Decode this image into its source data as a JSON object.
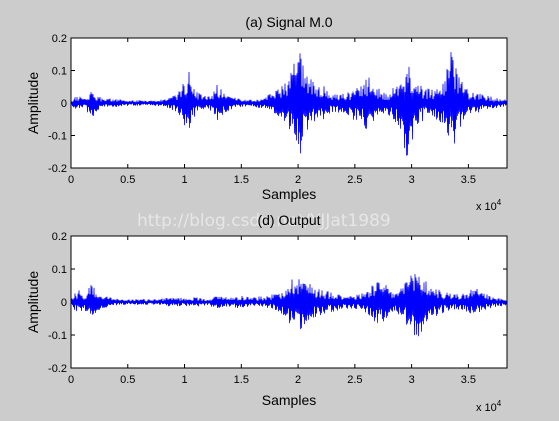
{
  "watermark": "http://blog.csdn.net/YJJat1989",
  "chart_data": [
    {
      "type": "line",
      "title": "(a)   Signal M.0",
      "xlabel": "Samples",
      "ylabel": "Amplitude",
      "x_exponent_label": "x 10",
      "x_exponent_value": "4",
      "xlim": [
        0,
        38400
      ],
      "ylim": [
        -0.2,
        0.2
      ],
      "xticks": [
        0,
        5000,
        10000,
        15000,
        20000,
        25000,
        30000,
        35000
      ],
      "xtick_labels": [
        "0",
        "0.5",
        "1",
        "1.5",
        "2",
        "2.5",
        "3",
        "3.5"
      ],
      "yticks": [
        -0.2,
        -0.1,
        0,
        0.1,
        0.2
      ],
      "ytick_labels": [
        "-0.2",
        "-0.1",
        "0",
        "0.1",
        "0.2"
      ],
      "grid": false,
      "line_color": "#0000ff",
      "series": [
        {
          "envelope_x": [
            0,
            600,
            1200,
            1800,
            2100,
            2600,
            3200,
            4000,
            5000,
            6000,
            7000,
            8000,
            8500,
            9200,
            9600,
            10000,
            10300,
            10800,
            11500,
            12000,
            12500,
            12800,
            13100,
            13600,
            14200,
            15000,
            16000,
            17000,
            17800,
            18500,
            19200,
            19800,
            20100,
            20600,
            21200,
            21800,
            22200,
            22600,
            23000,
            23600,
            24300,
            25000,
            25600,
            26200,
            26700,
            27200,
            27800,
            28300,
            28600,
            29000,
            29500,
            30000,
            30300,
            30700,
            31200,
            31800,
            32400,
            33000,
            33400,
            33800,
            34200,
            34700,
            35300,
            35800,
            36400,
            37000,
            37600,
            38400
          ],
          "envelope_upper": [
            0.012,
            0.022,
            0.015,
            0.037,
            0.028,
            0.018,
            0.015,
            0.012,
            0.009,
            0.008,
            0.007,
            0.01,
            0.018,
            0.03,
            0.04,
            0.07,
            0.12,
            0.045,
            0.025,
            0.02,
            0.032,
            0.063,
            0.048,
            0.03,
            0.018,
            0.012,
            0.01,
            0.02,
            0.035,
            0.05,
            0.075,
            0.14,
            0.19,
            0.12,
            0.07,
            0.05,
            0.055,
            0.04,
            0.03,
            0.03,
            0.035,
            0.04,
            0.06,
            0.085,
            0.065,
            0.04,
            0.03,
            0.05,
            0.06,
            0.1,
            0.14,
            0.11,
            0.085,
            0.06,
            0.045,
            0.045,
            0.05,
            0.09,
            0.17,
            0.125,
            0.08,
            0.05,
            0.035,
            0.03,
            0.025,
            0.02,
            0.015,
            0.01
          ],
          "envelope_lower": [
            -0.012,
            -0.02,
            -0.015,
            -0.055,
            -0.03,
            -0.018,
            -0.015,
            -0.012,
            -0.009,
            -0.008,
            -0.007,
            -0.01,
            -0.016,
            -0.028,
            -0.04,
            -0.075,
            -0.1,
            -0.045,
            -0.025,
            -0.02,
            -0.03,
            -0.06,
            -0.045,
            -0.03,
            -0.018,
            -0.012,
            -0.01,
            -0.02,
            -0.035,
            -0.055,
            -0.08,
            -0.13,
            -0.2,
            -0.12,
            -0.07,
            -0.05,
            -0.055,
            -0.04,
            -0.03,
            -0.03,
            -0.04,
            -0.055,
            -0.065,
            -0.09,
            -0.065,
            -0.04,
            -0.03,
            -0.05,
            -0.065,
            -0.11,
            -0.18,
            -0.12,
            -0.09,
            -0.065,
            -0.05,
            -0.05,
            -0.055,
            -0.09,
            -0.165,
            -0.125,
            -0.08,
            -0.05,
            -0.035,
            -0.03,
            -0.025,
            -0.02,
            -0.015,
            -0.01
          ]
        }
      ]
    },
    {
      "type": "line",
      "title": "(d)   Output",
      "xlabel": "Samples",
      "ylabel": "Amplitude",
      "x_exponent_label": "x 10",
      "x_exponent_value": "4",
      "xlim": [
        0,
        38400
      ],
      "ylim": [
        -0.2,
        0.2
      ],
      "xticks": [
        0,
        5000,
        10000,
        15000,
        20000,
        25000,
        30000,
        35000
      ],
      "xtick_labels": [
        "0",
        "0.5",
        "1",
        "1.5",
        "2",
        "2.5",
        "3",
        "3.5"
      ],
      "yticks": [
        -0.2,
        -0.1,
        0,
        0.1,
        0.2
      ],
      "ytick_labels": [
        "-0.2",
        "-0.1",
        "0",
        "0.1",
        "0.2"
      ],
      "grid": false,
      "line_color": "#0000ff",
      "series": [
        {
          "envelope_x": [
            0,
            600,
            1200,
            1800,
            2200,
            2700,
            3300,
            4000,
            5000,
            6000,
            7000,
            8000,
            9000,
            10000,
            11000,
            12000,
            13000,
            14000,
            15000,
            16000,
            17000,
            18000,
            18800,
            19500,
            20100,
            20700,
            21300,
            22000,
            22600,
            23200,
            24000,
            25000,
            25800,
            26500,
            27300,
            28000,
            28600,
            29200,
            29800,
            30200,
            30600,
            31100,
            31700,
            32300,
            33000,
            33600,
            34200,
            34800,
            35500,
            36200,
            36800,
            37400,
            38400
          ],
          "envelope_upper": [
            0.012,
            0.038,
            0.025,
            0.055,
            0.035,
            0.02,
            0.015,
            0.01,
            0.008,
            0.01,
            0.008,
            0.01,
            0.015,
            0.012,
            0.015,
            0.01,
            0.02,
            0.015,
            0.02,
            0.015,
            0.018,
            0.025,
            0.045,
            0.075,
            0.09,
            0.065,
            0.05,
            0.045,
            0.035,
            0.03,
            0.025,
            0.02,
            0.03,
            0.055,
            0.07,
            0.04,
            0.03,
            0.055,
            0.075,
            0.09,
            0.105,
            0.075,
            0.05,
            0.04,
            0.03,
            0.025,
            0.025,
            0.03,
            0.045,
            0.03,
            0.02,
            0.015,
            0.01
          ],
          "envelope_lower": [
            -0.012,
            -0.04,
            -0.025,
            -0.055,
            -0.035,
            -0.02,
            -0.015,
            -0.01,
            -0.008,
            -0.01,
            -0.008,
            -0.01,
            -0.015,
            -0.012,
            -0.015,
            -0.01,
            -0.02,
            -0.015,
            -0.02,
            -0.015,
            -0.018,
            -0.025,
            -0.045,
            -0.075,
            -0.1,
            -0.07,
            -0.05,
            -0.045,
            -0.035,
            -0.03,
            -0.025,
            -0.02,
            -0.03,
            -0.055,
            -0.07,
            -0.04,
            -0.03,
            -0.055,
            -0.08,
            -0.11,
            -0.14,
            -0.09,
            -0.055,
            -0.04,
            -0.03,
            -0.025,
            -0.025,
            -0.03,
            -0.045,
            -0.03,
            -0.02,
            -0.015,
            -0.01
          ]
        }
      ]
    }
  ]
}
